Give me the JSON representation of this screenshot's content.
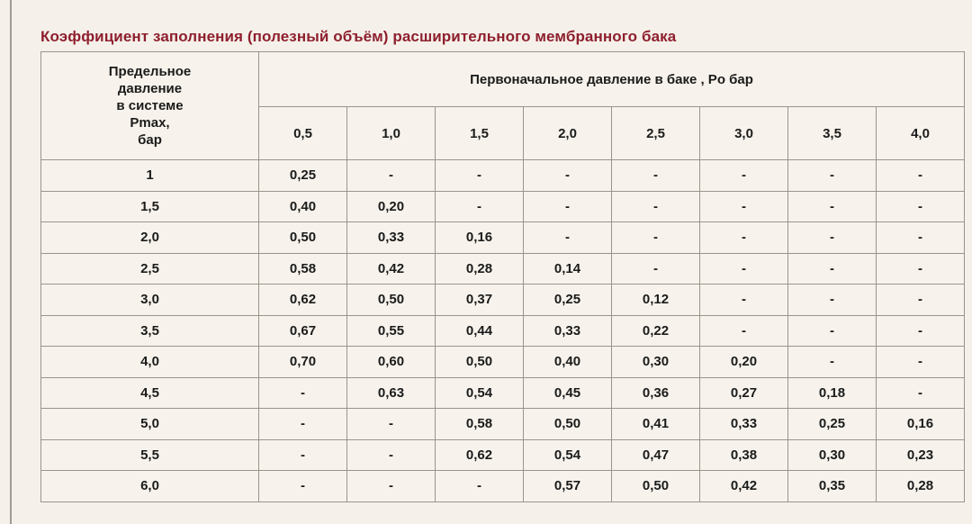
{
  "page": {
    "title": "Коэффициент заполнения (полезный объём) расширительного мембранного бака",
    "colors": {
      "background": "#F5F1EA",
      "title_text": "#8E1F2E",
      "table_border": "#9A948B",
      "cell_background": "#F7F3EC",
      "cell_text": "#1B1B1B"
    }
  },
  "table": {
    "corner_header": "Предельное\nдавление\nв системе\nPmax,\nбар",
    "group_header": "Первоначальное давление в баке , Po бар",
    "po_values": [
      "0,5",
      "1,0",
      "1,5",
      "2,0",
      "2,5",
      "3,0",
      "3,5",
      "4,0"
    ],
    "rows": [
      {
        "pmax": "1",
        "values": [
          "0,25",
          "-",
          "-",
          "-",
          "-",
          "-",
          "-",
          "-"
        ]
      },
      {
        "pmax": "1,5",
        "values": [
          "0,40",
          "0,20",
          "-",
          "-",
          "-",
          "-",
          "-",
          "-"
        ]
      },
      {
        "pmax": "2,0",
        "values": [
          "0,50",
          "0,33",
          "0,16",
          "-",
          "-",
          "-",
          "-",
          "-"
        ]
      },
      {
        "pmax": "2,5",
        "values": [
          "0,58",
          "0,42",
          "0,28",
          "0,14",
          "-",
          "-",
          "-",
          "-"
        ]
      },
      {
        "pmax": "3,0",
        "values": [
          "0,62",
          "0,50",
          "0,37",
          "0,25",
          "0,12",
          "-",
          "-",
          "-"
        ]
      },
      {
        "pmax": "3,5",
        "values": [
          "0,67",
          "0,55",
          "0,44",
          "0,33",
          "0,22",
          "-",
          "-",
          "-"
        ]
      },
      {
        "pmax": "4,0",
        "values": [
          "0,70",
          "0,60",
          "0,50",
          "0,40",
          "0,30",
          "0,20",
          "-",
          "-"
        ]
      },
      {
        "pmax": "4,5",
        "values": [
          "-",
          "0,63",
          "0,54",
          "0,45",
          "0,36",
          "0,27",
          "0,18",
          "-"
        ]
      },
      {
        "pmax": "5,0",
        "values": [
          "-",
          "-",
          "0,58",
          "0,50",
          "0,41",
          "0,33",
          "0,25",
          "0,16"
        ]
      },
      {
        "pmax": "5,5",
        "values": [
          "-",
          "-",
          "0,62",
          "0,54",
          "0,47",
          "0,38",
          "0,30",
          "0,23"
        ]
      },
      {
        "pmax": "6,0",
        "values": [
          "-",
          "-",
          "-",
          "0,57",
          "0,50",
          "0,42",
          "0,35",
          "0,28"
        ]
      }
    ]
  }
}
